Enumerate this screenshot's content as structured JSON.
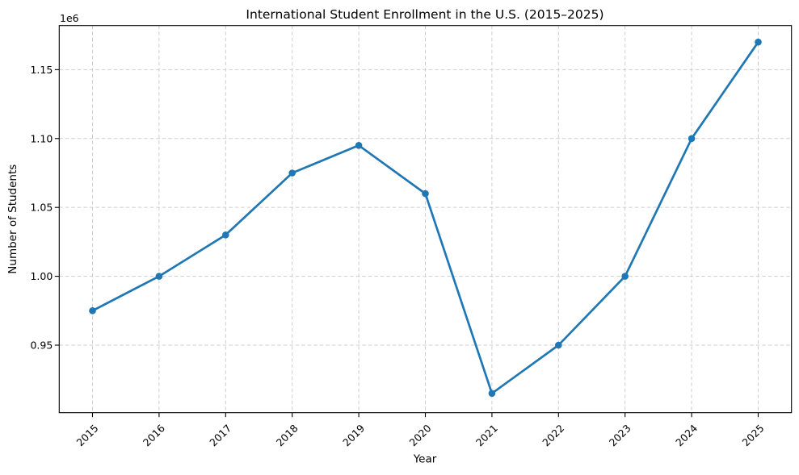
{
  "chart_data": {
    "type": "line",
    "title": "International Student Enrollment in the U.S. (2015–2025)",
    "xlabel": "Year",
    "ylabel": "Number of Students",
    "y_offset_text": "1e6",
    "categories": [
      "2015",
      "2016",
      "2017",
      "2018",
      "2019",
      "2020",
      "2021",
      "2022",
      "2023",
      "2024",
      "2025"
    ],
    "values": [
      975000,
      1000000,
      1030000,
      1075000,
      1095000,
      1060000,
      915000,
      950000,
      1000000,
      1100000,
      1170000
    ],
    "xlim": [
      2014.5,
      2025.5
    ],
    "ylim": [
      901000,
      1182000
    ],
    "yticks": [
      950000,
      1000000,
      1050000,
      1100000,
      1150000
    ],
    "ytick_labels": [
      "0.95",
      "1.00",
      "1.05",
      "1.10",
      "1.15"
    ],
    "grid": true,
    "grid_linestyle": "dashed",
    "legend": "none",
    "marker": "o",
    "line_color": "#1f77b4",
    "grid_color": "#cdcdcd",
    "spine_color": "#000000",
    "text_color": "#000000"
  }
}
